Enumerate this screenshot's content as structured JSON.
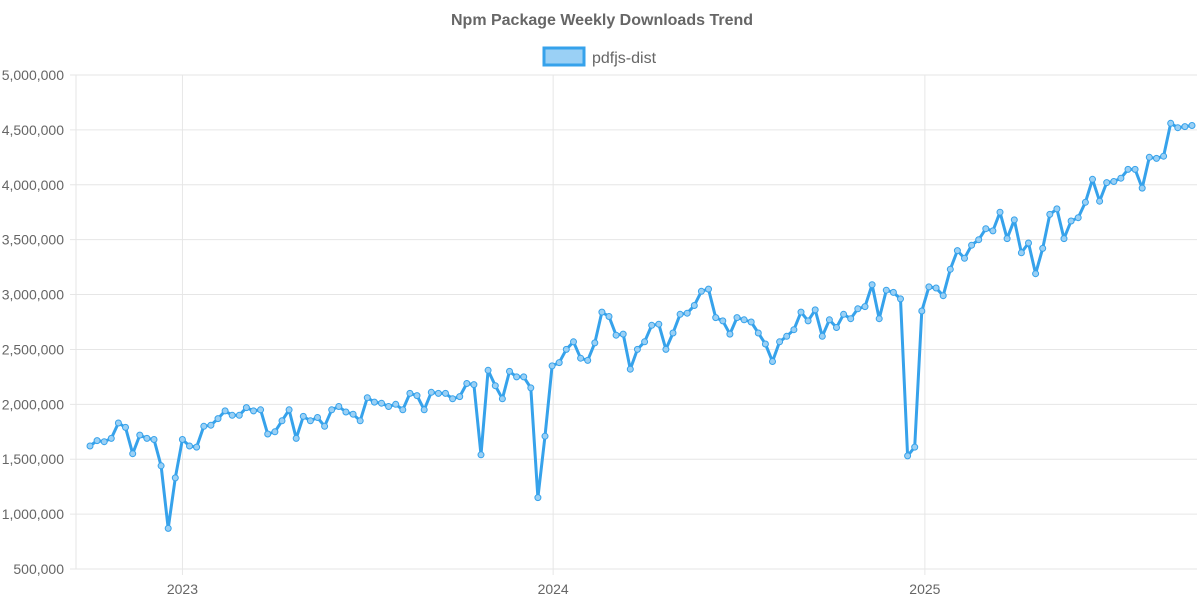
{
  "chart_data": {
    "type": "line",
    "title": "Npm Package Weekly Downloads Trend",
    "xlabel": "",
    "ylabel": "",
    "ylim": [
      500000,
      5000000
    ],
    "yticks": [
      500000,
      1000000,
      1500000,
      2000000,
      2500000,
      3000000,
      3500000,
      4000000,
      4500000,
      5000000
    ],
    "ytick_labels": [
      "500,000",
      "1,000,000",
      "1,500,000",
      "2,000,000",
      "2,500,000",
      "3,000,000",
      "3,500,000",
      "4,000,000",
      "4,500,000",
      "5,000,000"
    ],
    "xticks": [
      "2023",
      "2024",
      "2025"
    ],
    "x_start_week": "2022-10-02",
    "x_step_days": 7,
    "grid": true,
    "legend_position": "top-center",
    "colors": {
      "line": "#36a2eb",
      "fill": "#9ad0f5",
      "grid": "#e6e6e6",
      "text": "#666666"
    },
    "series": [
      {
        "name": "pdfjs-dist",
        "values": [
          1620000,
          1670000,
          1660000,
          1690000,
          1830000,
          1790000,
          1550000,
          1720000,
          1690000,
          1680000,
          1440000,
          870000,
          1330000,
          1680000,
          1620000,
          1610000,
          1800000,
          1810000,
          1870000,
          1940000,
          1900000,
          1900000,
          1970000,
          1940000,
          1950000,
          1730000,
          1750000,
          1850000,
          1950000,
          1690000,
          1890000,
          1850000,
          1880000,
          1800000,
          1950000,
          1980000,
          1930000,
          1910000,
          1850000,
          2060000,
          2020000,
          2010000,
          1980000,
          2000000,
          1950000,
          2100000,
          2080000,
          1950000,
          2110000,
          2100000,
          2100000,
          2050000,
          2070000,
          2190000,
          2180000,
          1540000,
          2310000,
          2170000,
          2050000,
          2300000,
          2250000,
          2250000,
          2150000,
          1150000,
          1710000,
          2350000,
          2380000,
          2500000,
          2570000,
          2420000,
          2400000,
          2560000,
          2840000,
          2800000,
          2630000,
          2640000,
          2320000,
          2500000,
          2570000,
          2720000,
          2730000,
          2500000,
          2650000,
          2820000,
          2830000,
          2900000,
          3030000,
          3050000,
          2790000,
          2760000,
          2640000,
          2790000,
          2770000,
          2750000,
          2650000,
          2550000,
          2390000,
          2570000,
          2620000,
          2680000,
          2840000,
          2760000,
          2860000,
          2620000,
          2770000,
          2700000,
          2820000,
          2780000,
          2870000,
          2890000,
          3090000,
          2780000,
          3040000,
          3020000,
          2960000,
          1530000,
          1610000,
          2850000,
          3070000,
          3060000,
          2990000,
          3230000,
          3400000,
          3330000,
          3450000,
          3500000,
          3600000,
          3580000,
          3750000,
          3510000,
          3680000,
          3380000,
          3470000,
          3190000,
          3420000,
          3730000,
          3780000,
          3510000,
          3670000,
          3700000,
          3840000,
          4050000,
          3850000,
          4020000,
          4030000,
          4060000,
          4140000,
          4140000,
          3970000,
          4250000,
          4240000,
          4260000,
          4560000,
          4520000,
          4530000,
          4540000
        ]
      }
    ]
  }
}
